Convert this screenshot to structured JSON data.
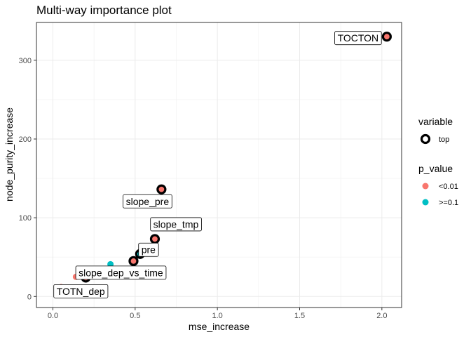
{
  "chart_data": {
    "type": "scatter",
    "title": "Multi-way importance plot",
    "xlabel": "mse_increase",
    "ylabel": "node_purity_increase",
    "xlim": [
      -0.1,
      2.12
    ],
    "ylim": [
      -14,
      348
    ],
    "x_ticks": [
      "0.0",
      "0.5",
      "1.0",
      "1.5",
      "2.0"
    ],
    "y_ticks": [
      "0",
      "100",
      "200",
      "300"
    ],
    "grid": true,
    "legend_placement": "right",
    "legends": [
      {
        "title": "variable",
        "items": [
          {
            "label": "top",
            "marker": "ring",
            "color": "#000000"
          }
        ]
      },
      {
        "title": "p_value",
        "items": [
          {
            "label": "<0.01",
            "marker": "dot",
            "color": "#F8766D"
          },
          {
            "label": ">=0.1",
            "marker": "dot",
            "color": "#00BFC4"
          }
        ]
      }
    ],
    "points": [
      {
        "x": 2.03,
        "y": 330,
        "p_value": "<0.01",
        "top": true,
        "label": "TOCTON"
      },
      {
        "x": 0.66,
        "y": 136,
        "p_value": "<0.01",
        "top": true,
        "label": "slope_pre"
      },
      {
        "x": 0.62,
        "y": 73,
        "p_value": "<0.01",
        "top": true,
        "label": "slope_tmp"
      },
      {
        "x": 0.53,
        "y": 54,
        "p_value": ">=0.1",
        "top": true,
        "label": "pre"
      },
      {
        "x": 0.49,
        "y": 45,
        "p_value": "<0.01",
        "top": true,
        "label": ""
      },
      {
        "x": 0.2,
        "y": 24,
        "p_value": "<0.01",
        "top": true,
        "label": "slope_dep_vs_time"
      },
      {
        "x": 0.35,
        "y": 41,
        "p_value": ">=0.1",
        "top": false,
        "label": ""
      },
      {
        "x": 0.14,
        "y": 25,
        "p_value": "<0.01",
        "top": false,
        "label": ""
      },
      {
        "x": 0.05,
        "y": 12,
        "p_value": "<0.01",
        "top": false,
        "label": "TOTN_dep"
      }
    ]
  }
}
